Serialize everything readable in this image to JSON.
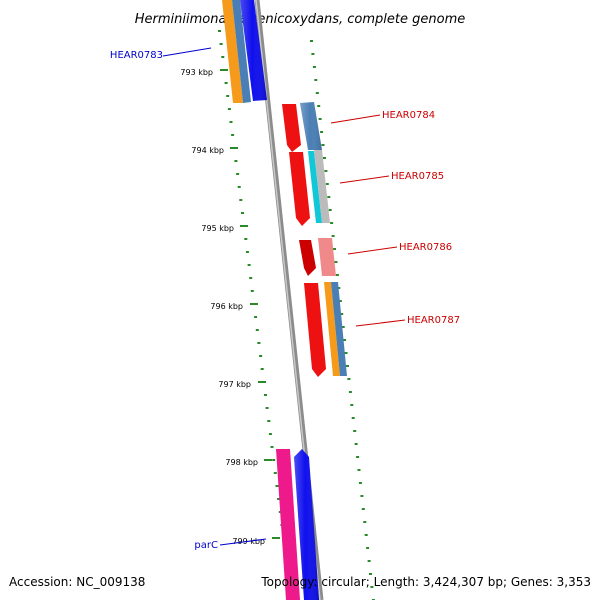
{
  "title": "Herminiimonas arsenicoxydans, complete genome",
  "footer": {
    "accession": "Accession: NC_009138",
    "topology": "Topology: circular; Length: 3,424,307 bp; Genes: 3,353"
  },
  "ticks": [
    "793 kbp",
    "794 kbp",
    "795 kbp",
    "796 kbp",
    "797 kbp",
    "798 kbp",
    "799 kbp"
  ],
  "gene_labels": [
    {
      "text": "HEAR0783",
      "color": "#0000cc"
    },
    {
      "text": "HEAR0784",
      "color": "#cc0000"
    },
    {
      "text": "HEAR0785",
      "color": "#cc0000"
    },
    {
      "text": "HEAR0786",
      "color": "#cc0000"
    },
    {
      "text": "HEAR0787",
      "color": "#cc0000"
    },
    {
      "text": "parC",
      "color": "#0000cc"
    }
  ],
  "colors": {
    "backbone": "#8c8c8c",
    "gc_dots": "#2a8a2a",
    "red": "#ee1111",
    "dark_red": "#cc0000",
    "pink": "#f08a8a",
    "orange": "#f59a1a",
    "steel_blue": "#4a7fb5",
    "blue": "#1010ee",
    "cyan": "#11c8d8",
    "grey": "#bbbbbb",
    "magenta": "#ee1a8c"
  }
}
